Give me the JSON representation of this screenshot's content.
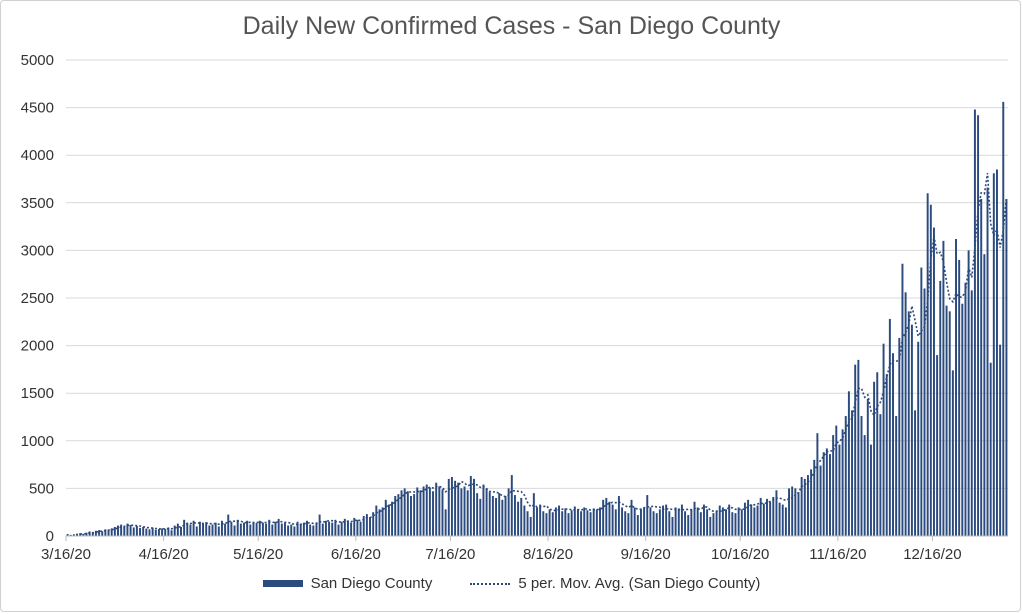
{
  "chart_data": {
    "type": "bar",
    "title": "Daily New Confirmed Cases - San Diego County",
    "xlabel": "",
    "ylabel": "",
    "ylim": [
      0,
      5000
    ],
    "yticks": [
      "0",
      "500",
      "1000",
      "1500",
      "2000",
      "2500",
      "3000",
      "3500",
      "4000",
      "4500",
      "5000"
    ],
    "xticks": [
      "3/16/20",
      "4/16/20",
      "5/16/20",
      "6/16/20",
      "7/16/20",
      "8/16/20",
      "9/16/20",
      "10/16/20",
      "11/16/20",
      "12/16/20"
    ],
    "grid": true,
    "legend_position": "bottom",
    "colors": {
      "bar": "#2b4a7e",
      "trend": "#2b4a7e",
      "grid": "#d9d9d9"
    },
    "series": [
      {
        "name": "San Diego County",
        "kind": "bar"
      },
      {
        "name": "5 per. Mov. Avg. (San Diego County)",
        "kind": "moving-average",
        "period": 5
      }
    ],
    "daily_cases_by_segment": [
      {
        "from": "3/16/20",
        "to": "3/31/20",
        "values": [
          20,
          12,
          18,
          25,
          30,
          22,
          35,
          48,
          40,
          55,
          62,
          50,
          70,
          68,
          80,
          95
        ]
      },
      {
        "from": "4/1/20",
        "to": "4/15/20",
        "values": [
          110,
          120,
          100,
          130,
          115,
          90,
          105,
          85,
          95,
          78,
          70,
          88,
          65,
          72,
          80
        ]
      },
      {
        "from": "4/16/20",
        "to": "4/30/20",
        "values": [
          75,
          90,
          60,
          110,
          130,
          95,
          170,
          140,
          120,
          160,
          100,
          150,
          130,
          145,
          110
        ]
      },
      {
        "from": "5/1/20",
        "to": "5/15/20",
        "values": [
          120,
          140,
          100,
          160,
          130,
          225,
          150,
          110,
          170,
          130,
          140,
          160,
          120,
          150,
          135
        ]
      },
      {
        "from": "5/16/20",
        "to": "5/31/20",
        "values": [
          160,
          140,
          130,
          170,
          120,
          150,
          180,
          130,
          140,
          110,
          120,
          100,
          150,
          130,
          140,
          160
        ]
      },
      {
        "from": "6/1/20",
        "to": "6/15/20",
        "values": [
          120,
          110,
          140,
          225,
          130,
          160,
          150,
          140,
          170,
          120,
          150,
          180,
          160,
          140,
          190
        ]
      },
      {
        "from": "6/16/20",
        "to": "6/30/20",
        "values": [
          170,
          150,
          210,
          230,
          200,
          250,
          320,
          280,
          300,
          380,
          330,
          360,
          420,
          440,
          480
        ]
      },
      {
        "from": "7/1/20",
        "to": "7/15/20",
        "values": [
          500,
          470,
          420,
          440,
          510,
          480,
          520,
          540,
          510,
          470,
          560,
          520,
          490,
          280,
          600
        ]
      },
      {
        "from": "7/16/20",
        "to": "7/31/20",
        "values": [
          620,
          580,
          560,
          500,
          520,
          480,
          630,
          600,
          450,
          390,
          540,
          500,
          460,
          420,
          400,
          450
        ]
      },
      {
        "from": "8/1/20",
        "to": "8/15/20",
        "values": [
          380,
          420,
          500,
          640,
          430,
          360,
          400,
          320,
          260,
          200,
          450,
          300,
          330,
          260,
          240
        ]
      },
      {
        "from": "8/16/20",
        "to": "8/31/20",
        "values": [
          280,
          250,
          300,
          320,
          260,
          290,
          240,
          270,
          310,
          280,
          260,
          300,
          270,
          250,
          290,
          280
        ]
      },
      {
        "from": "9/1/20",
        "to": "9/15/20",
        "values": [
          300,
          380,
          400,
          360,
          330,
          280,
          420,
          300,
          260,
          240,
          380,
          300,
          220,
          280,
          300
        ]
      },
      {
        "from": "9/16/20",
        "to": "9/30/20",
        "values": [
          430,
          300,
          260,
          240,
          280,
          320,
          330,
          260,
          200,
          300,
          290,
          330,
          260,
          220,
          280
        ]
      },
      {
        "from": "10/1/20",
        "to": "10/15/20",
        "values": [
          360,
          300,
          250,
          330,
          280,
          200,
          240,
          260,
          320,
          300,
          280,
          330,
          250,
          240,
          300
        ]
      },
      {
        "from": "10/16/20",
        "to": "10/31/20",
        "values": [
          280,
          350,
          380,
          330,
          300,
          320,
          400,
          340,
          390,
          360,
          410,
          480,
          350,
          330,
          300,
          500
        ]
      },
      {
        "from": "11/1/20",
        "to": "11/15/20",
        "values": [
          520,
          500,
          460,
          620,
          600,
          640,
          700,
          800,
          1080,
          740,
          880,
          920,
          860,
          1060,
          1160
        ]
      },
      {
        "from": "11/16/20",
        "to": "11/30/20",
        "values": [
          960,
          1120,
          1260,
          1520,
          1320,
          1800,
          1850,
          1260,
          1060,
          1440,
          960,
          1620,
          1720,
          1280,
          2020
        ]
      },
      {
        "from": "12/1/20",
        "to": "12/15/20",
        "values": [
          1700,
          2280,
          1920,
          1260,
          2080,
          2860,
          2560,
          2360,
          2220,
          1320,
          2040,
          2820,
          2600,
          3600,
          3480
        ]
      },
      {
        "from": "12/16/20",
        "to": "12/31/20",
        "values": [
          3240,
          1900,
          2680,
          3100,
          2420,
          2360,
          1740,
          3120,
          2900,
          2440,
          2660,
          3000,
          2580,
          4480,
          4420,
          3540
        ]
      },
      {
        "from": "1/1/21",
        "to": "1/8/21",
        "values": [
          2960,
          3660,
          1820,
          3810,
          3850,
          2010,
          4560,
          3540
        ]
      }
    ]
  }
}
